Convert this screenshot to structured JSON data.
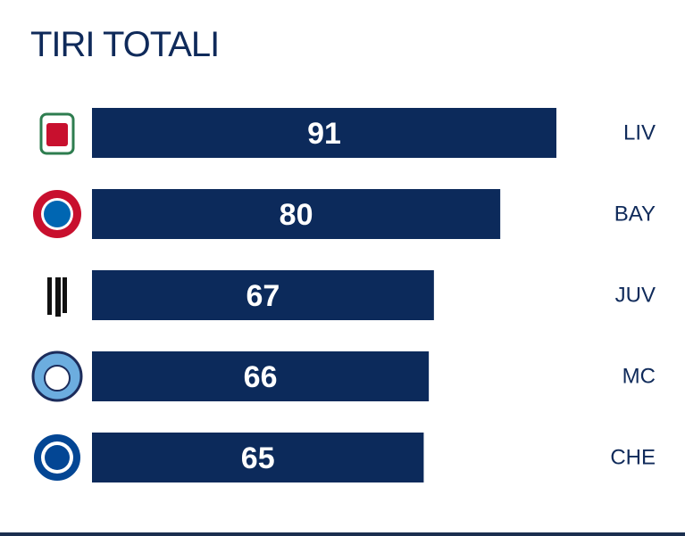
{
  "chart_data": {
    "type": "bar",
    "orientation": "horizontal",
    "title": "TIRI TOTALI",
    "categories": [
      "LIV",
      "BAY",
      "JUV",
      "MC",
      "CHE"
    ],
    "values": [
      91,
      80,
      67,
      66,
      65
    ],
    "color": "#0c2a5b"
  }
}
